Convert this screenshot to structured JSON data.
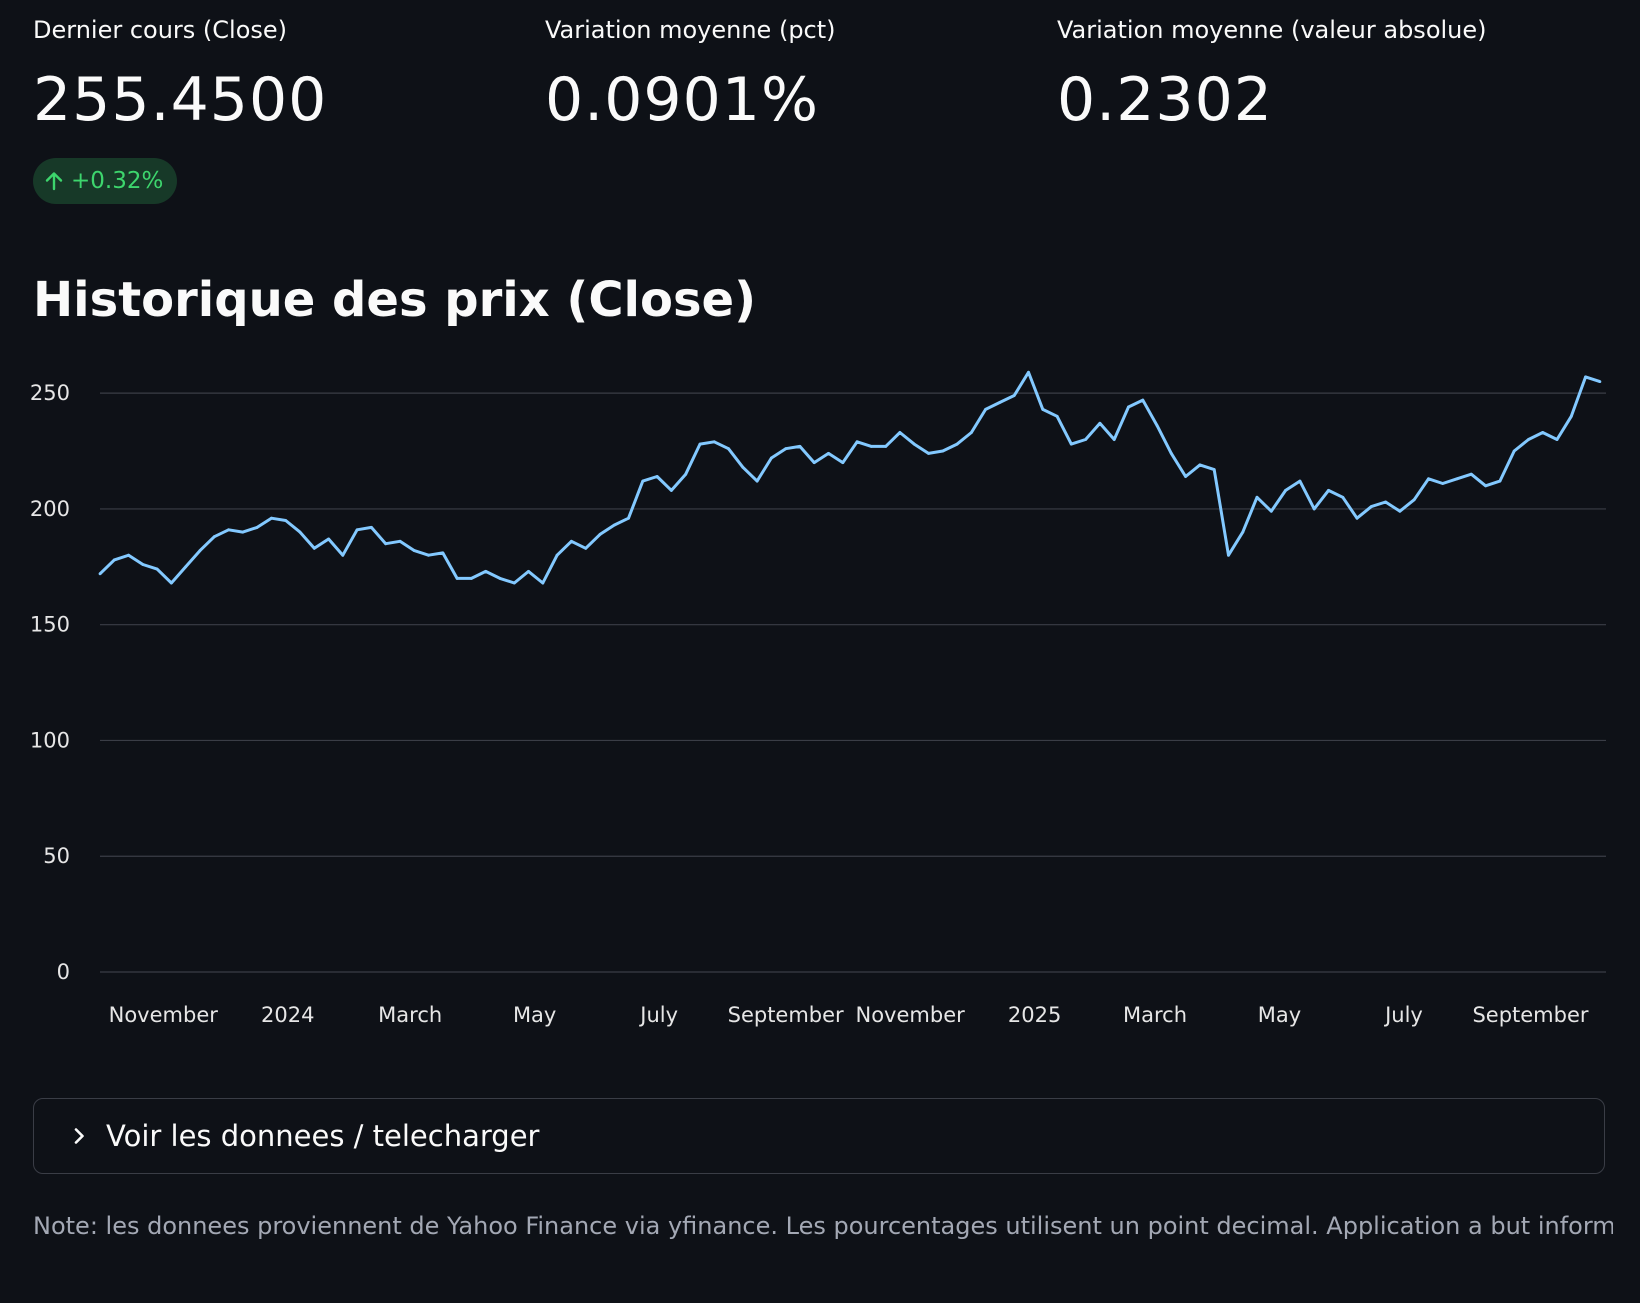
{
  "metrics": [
    {
      "label": "Dernier cours (Close)",
      "value": "255.4500",
      "delta": "+0.32%"
    },
    {
      "label": "Variation moyenne (pct)",
      "value": "0.0901%"
    },
    {
      "label": "Variation moyenne (valeur absolue)",
      "value": "0.2302"
    }
  ],
  "colors": {
    "background": "#0e1117",
    "line": "#83c9ff",
    "delta_bg": "#173928",
    "delta_text": "#3dd56d"
  },
  "section_title": "Historique des prix (Close)",
  "chart_data": {
    "type": "line",
    "title": "",
    "xlabel": "",
    "ylabel": "",
    "ylim": [
      0,
      260
    ],
    "yticks": [
      0,
      50,
      100,
      150,
      200,
      250
    ],
    "xlim": [
      "2023-10-01",
      "2025-10-08"
    ],
    "xticks": [
      {
        "date": "2023-11-01",
        "label": "November"
      },
      {
        "date": "2024-01-01",
        "label": "2024"
      },
      {
        "date": "2024-03-01",
        "label": "March"
      },
      {
        "date": "2024-05-01",
        "label": "May"
      },
      {
        "date": "2024-07-01",
        "label": "July"
      },
      {
        "date": "2024-09-01",
        "label": "September"
      },
      {
        "date": "2024-11-01",
        "label": "November"
      },
      {
        "date": "2025-01-01",
        "label": "2025"
      },
      {
        "date": "2025-03-01",
        "label": "March"
      },
      {
        "date": "2025-05-01",
        "label": "May"
      },
      {
        "date": "2025-07-01",
        "label": "July"
      },
      {
        "date": "2025-09-01",
        "label": "September"
      }
    ],
    "grid": true,
    "series": [
      {
        "x": [
          "2023-10-01",
          "2023-10-08",
          "2023-10-15",
          "2023-10-22",
          "2023-10-29",
          "2023-11-05",
          "2023-11-12",
          "2023-11-19",
          "2023-11-26",
          "2023-12-03",
          "2023-12-10",
          "2023-12-17",
          "2023-12-24",
          "2023-12-31",
          "2024-01-07",
          "2024-01-14",
          "2024-01-21",
          "2024-01-28",
          "2024-02-04",
          "2024-02-11",
          "2024-02-18",
          "2024-02-25",
          "2024-03-03",
          "2024-03-10",
          "2024-03-17",
          "2024-03-24",
          "2024-03-31",
          "2024-04-07",
          "2024-04-14",
          "2024-04-21",
          "2024-04-28",
          "2024-05-05",
          "2024-05-12",
          "2024-05-19",
          "2024-05-26",
          "2024-06-02",
          "2024-06-09",
          "2024-06-16",
          "2024-06-23",
          "2024-06-30",
          "2024-07-07",
          "2024-07-14",
          "2024-07-21",
          "2024-07-28",
          "2024-08-04",
          "2024-08-11",
          "2024-08-18",
          "2024-08-25",
          "2024-09-01",
          "2024-09-08",
          "2024-09-15",
          "2024-09-22",
          "2024-09-29",
          "2024-10-06",
          "2024-10-13",
          "2024-10-20",
          "2024-10-27",
          "2024-11-03",
          "2024-11-10",
          "2024-11-17",
          "2024-11-24",
          "2024-12-01",
          "2024-12-08",
          "2024-12-15",
          "2024-12-22",
          "2024-12-29",
          "2025-01-05",
          "2025-01-12",
          "2025-01-19",
          "2025-01-26",
          "2025-02-02",
          "2025-02-09",
          "2025-02-16",
          "2025-02-23",
          "2025-03-02",
          "2025-03-09",
          "2025-03-16",
          "2025-03-23",
          "2025-03-30",
          "2025-04-06",
          "2025-04-13",
          "2025-04-20",
          "2025-04-27",
          "2025-05-04",
          "2025-05-11",
          "2025-05-18",
          "2025-05-25",
          "2025-06-01",
          "2025-06-08",
          "2025-06-15",
          "2025-06-22",
          "2025-06-29",
          "2025-07-06",
          "2025-07-13",
          "2025-07-20",
          "2025-07-27",
          "2025-08-03",
          "2025-08-10",
          "2025-08-17",
          "2025-08-24",
          "2025-08-31",
          "2025-09-07",
          "2025-09-14",
          "2025-09-21",
          "2025-09-28",
          "2025-10-05"
        ],
        "values": [
          172,
          178,
          180,
          176,
          174,
          168,
          175,
          182,
          188,
          191,
          190,
          192,
          196,
          195,
          190,
          183,
          187,
          180,
          191,
          192,
          185,
          186,
          182,
          180,
          181,
          170,
          170,
          173,
          170,
          168,
          173,
          168,
          180,
          186,
          183,
          189,
          193,
          196,
          212,
          214,
          208,
          215,
          228,
          229,
          226,
          218,
          212,
          222,
          226,
          227,
          220,
          224,
          220,
          229,
          227,
          227,
          233,
          228,
          224,
          225,
          228,
          233,
          243,
          246,
          249,
          259,
          243,
          240,
          228,
          230,
          237,
          230,
          244,
          247,
          236,
          224,
          214,
          219,
          217,
          180,
          190,
          205,
          199,
          208,
          212,
          200,
          208,
          205,
          196,
          201,
          203,
          199,
          204,
          213,
          211,
          213,
          215,
          210,
          212,
          225,
          230,
          233,
          230,
          240,
          257,
          255
        ]
      }
    ]
  },
  "expander": {
    "label": "Voir les donnees / telecharger",
    "icon": "chevron-right-icon"
  },
  "note": "Note: les donnees proviennent de Yahoo Finance via yfinance. Les pourcentages utilisent un point decimal. Application a but informatif."
}
